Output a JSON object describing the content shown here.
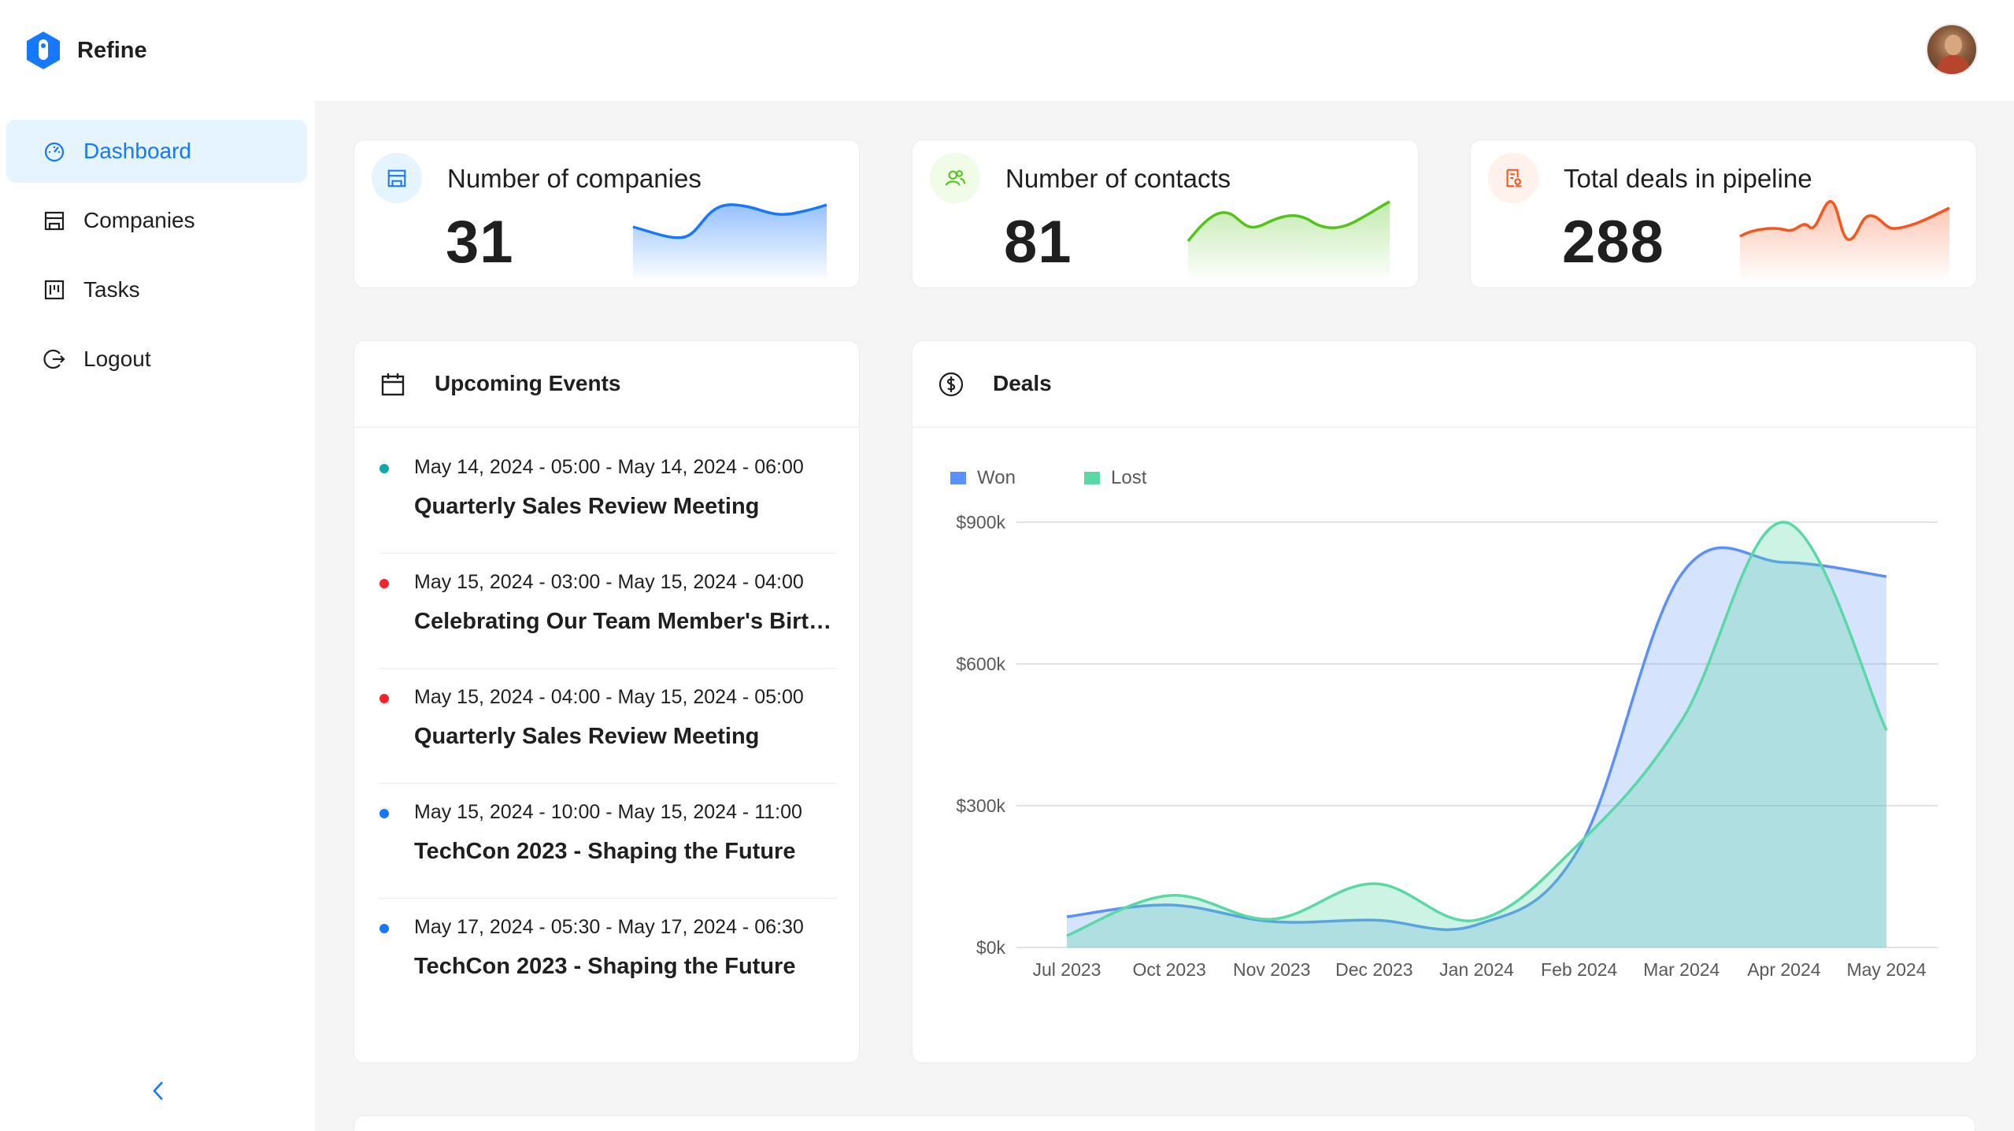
{
  "app": {
    "name": "Refine"
  },
  "colors": {
    "accent": "#1677ff",
    "won": "#5b8ff9",
    "lost": "#5ad8a6",
    "companies": "#1677ff",
    "contacts": "#52c41a",
    "deals": "#fa541c"
  },
  "sidebar": {
    "items": [
      {
        "label": "Dashboard",
        "icon": "dashboard-icon",
        "active": true
      },
      {
        "label": "Companies",
        "icon": "shop-icon",
        "active": false
      },
      {
        "label": "Tasks",
        "icon": "project-icon",
        "active": false
      },
      {
        "label": "Logout",
        "icon": "logout-icon",
        "active": false
      }
    ],
    "collapse_icon": "chevron-left-icon"
  },
  "stats": {
    "companies": {
      "title": "Number of companies",
      "value": "31",
      "icon": "shop-icon"
    },
    "contacts": {
      "title": "Number of contacts",
      "value": "81",
      "icon": "team-icon"
    },
    "deals": {
      "title": "Total deals in pipeline",
      "value": "288",
      "icon": "audit-icon"
    }
  },
  "events": {
    "title": "Upcoming Events",
    "icon": "calendar-icon",
    "items": [
      {
        "time": "May 14, 2024 - 05:00 - May 14, 2024 - 06:00",
        "title": "Quarterly Sales Review Meeting",
        "color": "#13a8a8"
      },
      {
        "time": "May 15, 2024 - 03:00 - May 15, 2024 - 04:00",
        "title": "Celebrating Our Team Member's Birthday",
        "color": "#f5222d"
      },
      {
        "time": "May 15, 2024 - 04:00 - May 15, 2024 - 05:00",
        "title": "Quarterly Sales Review Meeting",
        "color": "#f5222d"
      },
      {
        "time": "May 15, 2024 - 10:00 - May 15, 2024 - 11:00",
        "title": "TechCon 2023 - Shaping the Future",
        "color": "#1677ff"
      },
      {
        "time": "May 17, 2024 - 05:30 - May 17, 2024 - 06:30",
        "title": "TechCon 2023 - Shaping the Future",
        "color": "#1677ff"
      }
    ]
  },
  "deals": {
    "title": "Deals",
    "icon": "dollar-icon"
  },
  "chart_data": {
    "type": "area",
    "categories": [
      "Jul 2023",
      "Oct 2023",
      "Nov 2023",
      "Dec 2023",
      "Jan 2024",
      "Feb 2024",
      "Mar 2024",
      "Apr 2024",
      "May 2024"
    ],
    "series": [
      {
        "name": "Won",
        "values": [
          65000,
          90000,
          55000,
          58000,
          48000,
          210000,
          790000,
          815000,
          785000
        ]
      },
      {
        "name": "Lost",
        "values": [
          25000,
          110000,
          60000,
          135000,
          58000,
          220000,
          480000,
          900000,
          460000
        ]
      }
    ],
    "yticks": [
      "$0k",
      "$300k",
      "$600k",
      "$900k"
    ],
    "ylim": [
      0,
      900000
    ],
    "legend": "top-left",
    "grid": true
  }
}
